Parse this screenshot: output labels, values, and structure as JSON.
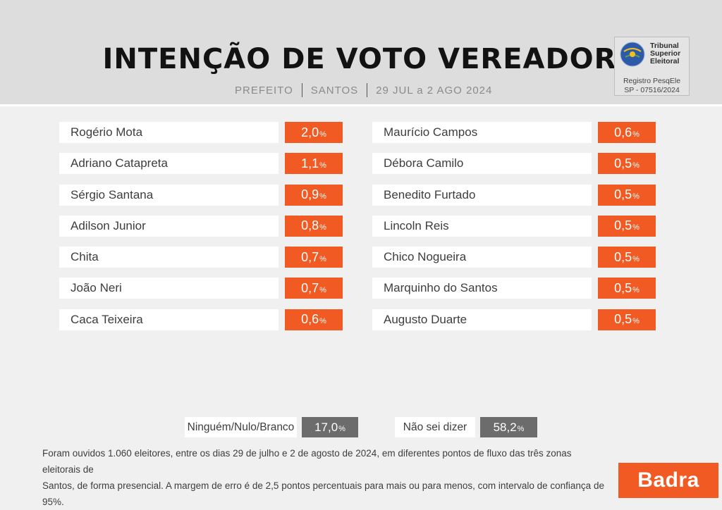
{
  "header": {
    "title": "INTENÇÃO DE VOTO VEREADOR",
    "subtitle": {
      "part1": "PREFEITO",
      "part2": "SANTOS",
      "part3": "29 JUL a 2 AGO 2024"
    }
  },
  "registry": {
    "line1": "Tribunal",
    "line2": "Superior",
    "line3": "Eleitoral",
    "reg_line1": "Registro PesqEle",
    "reg_line2": "SP - 07516/2024"
  },
  "chart_data": {
    "type": "table",
    "unit": "%",
    "left": [
      {
        "name": "Rogério Mota",
        "value": "2,0",
        "pct": "%"
      },
      {
        "name": "Adriano Catapreta",
        "value": "1,1",
        "pct": "%"
      },
      {
        "name": "Sérgio Santana",
        "value": "0,9",
        "pct": "%"
      },
      {
        "name": "Adilson Junior",
        "value": "0,8",
        "pct": "%"
      },
      {
        "name": "Chita",
        "value": "0,7",
        "pct": "%"
      },
      {
        "name": "João Neri",
        "value": "0,7",
        "pct": "%"
      },
      {
        "name": "Caca Teixeira",
        "value": "0,6",
        "pct": "%"
      }
    ],
    "right": [
      {
        "name": "Maurício Campos",
        "value": "0,6",
        "pct": "%"
      },
      {
        "name": "Débora Camilo",
        "value": "0,5",
        "pct": "%"
      },
      {
        "name": "Benedito Furtado",
        "value": "0,5",
        "pct": "%"
      },
      {
        "name": "Lincoln Reis",
        "value": "0,5",
        "pct": "%"
      },
      {
        "name": "Chico Nogueira",
        "value": "0,5",
        "pct": "%"
      },
      {
        "name": "Marquinho do Santos",
        "value": "0,5",
        "pct": "%"
      },
      {
        "name": "Augusto Duarte",
        "value": "0,5",
        "pct": "%"
      }
    ],
    "other": [
      {
        "name": "Ninguém/Nulo/Branco",
        "value": "17,0",
        "pct": "%"
      },
      {
        "name": "Não sei dizer",
        "value": "58,2",
        "pct": "%"
      }
    ]
  },
  "footnote": {
    "line1": "Foram ouvidos 1.060 eleitores, entre os dias 29 de julho e 2 de agosto de 2024, em diferentes pontos de fluxo das três zonas eleitorais de",
    "line2": "Santos, de forma presencial. A margem de erro é de 2,5 pontos percentuais para mais ou para menos, com intervalo de confiança de 95%."
  },
  "brand": {
    "name": "Badra"
  },
  "colors": {
    "accent": "#f15a22",
    "neutral_value": "#6c6c6c",
    "header_bg": "#dddddd"
  }
}
